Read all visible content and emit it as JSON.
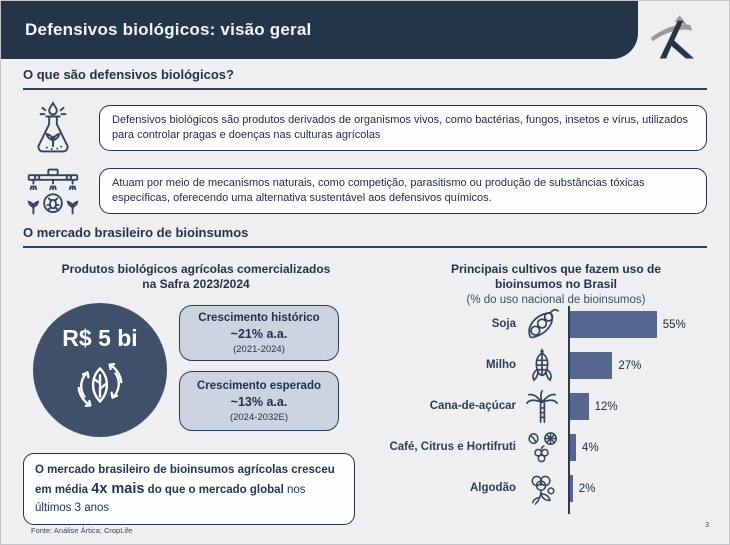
{
  "slide": {
    "title": "Defensivos biológicos: visão geral",
    "footer_source": "Fonte: Análise Ártica; CropLife",
    "page_number": "3",
    "colors": {
      "header_bg": "#243449",
      "bar": "#55678e",
      "circle": "#41506a",
      "growth_box_bg": "#ccd4e2",
      "background": "#efeff1"
    }
  },
  "section1": {
    "title": "O que são defensivos biológicos?",
    "items": [
      {
        "icon": "flask-plant-icon",
        "text": "Defensivos biológicos são produtos derivados de organismos vivos, como bactérias, fungos, insetos e vírus, utilizados para controlar pragas e doenças nas culturas agrícolas"
      },
      {
        "icon": "crop-sprayer-icon",
        "text": "Atuam por meio de mecanismos naturais, como competição, parasitismo ou produção de substâncias tóxicas específicas, oferecendo uma alternativa sustentável aos defensivos químicos."
      }
    ]
  },
  "section2": {
    "title": "O mercado brasileiro de bioinsumos",
    "left": {
      "heading": "Produtos biológicos agrícolas comercializados\nna Safra 2023/2024",
      "circle_value": "R$ 5 bi",
      "circle_icon": "leaf-recycle-icon",
      "growth_boxes": [
        {
          "label": "Crescimento histórico",
          "value": "~21% a.a.",
          "period": "(2021-2024)"
        },
        {
          "label": "Crescimento esperado",
          "value": "~13% a.a.",
          "period": "(2024-2032E)"
        }
      ],
      "callout": {
        "part1": "O mercado brasileiro de bioinsumos agrícolas cresceu em média ",
        "highlight": "4x mais",
        "part2": " do que o mercado global",
        "part3": " nos últimos 3 anos"
      }
    }
  },
  "chart_data": {
    "type": "bar",
    "orientation": "horizontal",
    "title": "Principais cultivos que fazem uso de\nbioinsumos no Brasil",
    "subtitle": "(% do uso nacional de bioinsumos)",
    "categories": [
      "Soja",
      "Milho",
      "Cana-de-açúcar",
      "Café, Citrus e Hortifruti",
      "Algodão"
    ],
    "values": [
      55,
      27,
      12,
      4,
      2
    ],
    "value_labels": [
      "55%",
      "27%",
      "12%",
      "4%",
      "2%"
    ],
    "icons": [
      "soybean-icon",
      "corn-icon",
      "sugarcane-icon",
      "coffee-citrus-icon",
      "cotton-icon"
    ],
    "xlim": [
      0,
      100
    ],
    "bar_color": "#55678e",
    "grid": false,
    "legend": "none"
  }
}
